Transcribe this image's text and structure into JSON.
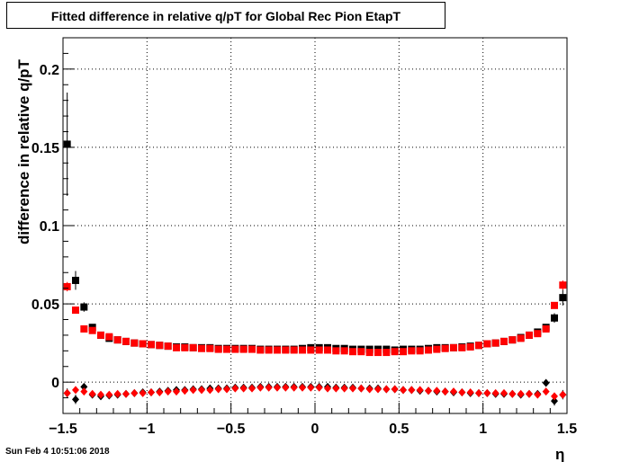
{
  "title": "Fitted difference in relative q/pT for Global Rec Pion EtapT",
  "datestamp": "Sun Feb  4 10:51:06 2018",
  "chart_data": {
    "type": "scatter",
    "title": "Fitted difference in relative q/pT for Global Rec Pion EtapT",
    "xlabel": "η",
    "ylabel": "difference in relative q/pT",
    "xlim": [
      -1.5,
      1.5
    ],
    "ylim": [
      -0.02,
      0.22
    ],
    "x_ticks": [
      -1.5,
      -1,
      -0.5,
      0,
      0.5,
      1,
      1.5
    ],
    "x_tick_labels": [
      "−1.5",
      "−1",
      "−0.5",
      "0",
      "0.5",
      "1",
      "1.5"
    ],
    "y_ticks": [
      0,
      0.05,
      0.1,
      0.15,
      0.2
    ],
    "y_tick_labels": [
      "0",
      "0.05",
      "0.1",
      "0.15",
      "0.2"
    ],
    "grid": true,
    "x": [
      -1.475,
      -1.425,
      -1.375,
      -1.325,
      -1.275,
      -1.225,
      -1.175,
      -1.125,
      -1.075,
      -1.025,
      -0.975,
      -0.925,
      -0.875,
      -0.825,
      -0.775,
      -0.725,
      -0.675,
      -0.625,
      -0.575,
      -0.525,
      -0.475,
      -0.425,
      -0.375,
      -0.325,
      -0.275,
      -0.225,
      -0.175,
      -0.125,
      -0.075,
      -0.025,
      0.025,
      0.075,
      0.125,
      0.175,
      0.225,
      0.275,
      0.325,
      0.375,
      0.425,
      0.475,
      0.525,
      0.575,
      0.625,
      0.675,
      0.725,
      0.775,
      0.825,
      0.875,
      0.925,
      0.975,
      1.025,
      1.075,
      1.125,
      1.175,
      1.225,
      1.275,
      1.325,
      1.375,
      1.425,
      1.475
    ],
    "series": [
      {
        "marker": "square",
        "color": "#000000",
        "values": [
          0.152,
          0.065,
          0.048,
          0.035,
          0.03,
          0.028,
          0.027,
          0.026,
          0.025,
          0.0245,
          0.024,
          0.0235,
          0.023,
          0.0225,
          0.0225,
          0.022,
          0.022,
          0.022,
          0.0215,
          0.0215,
          0.0215,
          0.0215,
          0.0215,
          0.021,
          0.021,
          0.021,
          0.021,
          0.021,
          0.0215,
          0.022,
          0.022,
          0.022,
          0.0215,
          0.0215,
          0.021,
          0.021,
          0.021,
          0.021,
          0.021,
          0.0205,
          0.021,
          0.021,
          0.021,
          0.0215,
          0.022,
          0.022,
          0.022,
          0.0225,
          0.023,
          0.0235,
          0.0245,
          0.025,
          0.026,
          0.027,
          0.0285,
          0.03,
          0.032,
          0.035,
          0.041,
          0.054
        ],
        "errors": [
          0.033,
          0.006,
          0.003,
          0.001,
          0.0005,
          0.0005,
          0.0005,
          0.0005,
          0.0005,
          0.0005,
          0.0005,
          0.0005,
          0.0005,
          0.0005,
          0.0005,
          0.0005,
          0.0005,
          0.0005,
          0.0005,
          0.0005,
          0.0005,
          0.0005,
          0.0005,
          0.0005,
          0.0005,
          0.0005,
          0.0005,
          0.0005,
          0.0005,
          0.0005,
          0.0005,
          0.0005,
          0.0005,
          0.0005,
          0.0005,
          0.0005,
          0.0005,
          0.0005,
          0.0005,
          0.0005,
          0.0005,
          0.0005,
          0.0005,
          0.0005,
          0.0005,
          0.0005,
          0.0005,
          0.0005,
          0.0005,
          0.0005,
          0.0005,
          0.0005,
          0.0005,
          0.0005,
          0.0005,
          0.0005,
          0.001,
          0.001,
          0.003,
          0.005
        ]
      },
      {
        "marker": "square",
        "color": "#ff0000",
        "values": [
          0.061,
          0.046,
          0.034,
          0.033,
          0.03,
          0.029,
          0.027,
          0.026,
          0.025,
          0.0245,
          0.024,
          0.0235,
          0.023,
          0.022,
          0.022,
          0.022,
          0.0215,
          0.0215,
          0.021,
          0.021,
          0.021,
          0.021,
          0.021,
          0.0205,
          0.0205,
          0.0205,
          0.0205,
          0.0205,
          0.0205,
          0.0205,
          0.0205,
          0.0205,
          0.02,
          0.02,
          0.0195,
          0.0195,
          0.019,
          0.019,
          0.019,
          0.0195,
          0.0195,
          0.02,
          0.02,
          0.0205,
          0.021,
          0.0215,
          0.022,
          0.022,
          0.0225,
          0.0235,
          0.0245,
          0.025,
          0.026,
          0.027,
          0.028,
          0.03,
          0.031,
          0.034,
          0.049,
          0.062
        ],
        "errors": [
          0.003,
          0.002,
          0.001,
          0.0005,
          0.0005,
          0.0005,
          0.0005,
          0.0005,
          0.0005,
          0.0005,
          0.0005,
          0.0005,
          0.0005,
          0.0005,
          0.0005,
          0.0005,
          0.0005,
          0.0005,
          0.0005,
          0.0005,
          0.0005,
          0.0005,
          0.0005,
          0.0005,
          0.0005,
          0.0005,
          0.0005,
          0.0005,
          0.0005,
          0.0005,
          0.0005,
          0.0005,
          0.0005,
          0.0005,
          0.0005,
          0.0005,
          0.0005,
          0.0005,
          0.0005,
          0.0005,
          0.0005,
          0.0005,
          0.0005,
          0.0005,
          0.0005,
          0.0005,
          0.0005,
          0.0005,
          0.0005,
          0.0005,
          0.0005,
          0.0005,
          0.0005,
          0.0005,
          0.0005,
          0.0005,
          0.0005,
          0.001,
          0.002,
          0.003
        ]
      },
      {
        "marker": "diamond",
        "color": "#000000",
        "values": [
          -0.007,
          -0.011,
          -0.003,
          -0.008,
          -0.009,
          -0.0085,
          -0.008,
          -0.0075,
          -0.007,
          -0.0065,
          -0.0065,
          -0.006,
          -0.0055,
          -0.005,
          -0.005,
          -0.0045,
          -0.0045,
          -0.004,
          -0.004,
          -0.004,
          -0.0035,
          -0.0035,
          -0.0035,
          -0.003,
          -0.003,
          -0.003,
          -0.003,
          -0.003,
          -0.003,
          -0.003,
          -0.003,
          -0.003,
          -0.0035,
          -0.0035,
          -0.0035,
          -0.004,
          -0.004,
          -0.004,
          -0.0045,
          -0.0045,
          -0.005,
          -0.005,
          -0.0055,
          -0.0055,
          -0.006,
          -0.006,
          -0.0065,
          -0.0065,
          -0.007,
          -0.007,
          -0.007,
          -0.0075,
          -0.0075,
          -0.0075,
          -0.008,
          -0.0075,
          -0.0075,
          -0.0005,
          -0.012,
          -0.008
        ],
        "errors": [
          0.003,
          0.003,
          0.002,
          0.001,
          0.001,
          0.001,
          0.001,
          0.001,
          0.001,
          0.001,
          0.001,
          0.001,
          0.001,
          0.001,
          0.001,
          0.001,
          0.001,
          0.001,
          0.001,
          0.001,
          0.001,
          0.001,
          0.001,
          0.001,
          0.001,
          0.001,
          0.001,
          0.001,
          0.001,
          0.001,
          0.001,
          0.001,
          0.001,
          0.001,
          0.001,
          0.001,
          0.001,
          0.001,
          0.001,
          0.001,
          0.001,
          0.001,
          0.001,
          0.001,
          0.001,
          0.001,
          0.001,
          0.001,
          0.001,
          0.001,
          0.001,
          0.001,
          0.001,
          0.001,
          0.001,
          0.001,
          0.001,
          0.002,
          0.003,
          0.003
        ]
      },
      {
        "marker": "diamond",
        "color": "#ff0000",
        "values": [
          -0.007,
          -0.005,
          -0.006,
          -0.0075,
          -0.008,
          -0.008,
          -0.0075,
          -0.0075,
          -0.007,
          -0.007,
          -0.0065,
          -0.0065,
          -0.006,
          -0.006,
          -0.0055,
          -0.005,
          -0.005,
          -0.005,
          -0.0045,
          -0.0045,
          -0.004,
          -0.004,
          -0.004,
          -0.0035,
          -0.0035,
          -0.0035,
          -0.0035,
          -0.0035,
          -0.0035,
          -0.0035,
          -0.0035,
          -0.004,
          -0.004,
          -0.004,
          -0.004,
          -0.004,
          -0.0045,
          -0.0045,
          -0.0045,
          -0.0045,
          -0.005,
          -0.005,
          -0.005,
          -0.0055,
          -0.0055,
          -0.006,
          -0.006,
          -0.0065,
          -0.0065,
          -0.007,
          -0.007,
          -0.007,
          -0.007,
          -0.0075,
          -0.0075,
          -0.0075,
          -0.008,
          -0.006,
          -0.009,
          -0.008
        ],
        "errors": [
          0.002,
          0.002,
          0.001,
          0.001,
          0.001,
          0.001,
          0.001,
          0.001,
          0.001,
          0.001,
          0.001,
          0.001,
          0.001,
          0.001,
          0.001,
          0.001,
          0.001,
          0.001,
          0.001,
          0.001,
          0.001,
          0.001,
          0.001,
          0.001,
          0.001,
          0.001,
          0.001,
          0.001,
          0.001,
          0.001,
          0.001,
          0.001,
          0.001,
          0.001,
          0.001,
          0.001,
          0.001,
          0.001,
          0.001,
          0.001,
          0.001,
          0.001,
          0.001,
          0.001,
          0.001,
          0.001,
          0.001,
          0.001,
          0.001,
          0.001,
          0.001,
          0.001,
          0.001,
          0.001,
          0.001,
          0.001,
          0.001,
          0.002,
          0.002,
          0.002
        ]
      }
    ]
  }
}
